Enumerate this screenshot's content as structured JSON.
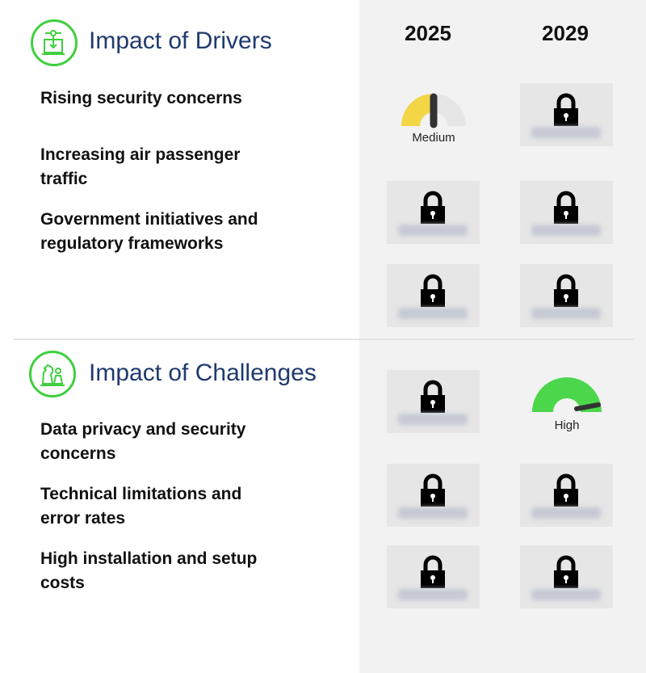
{
  "years": [
    "2025",
    "2029"
  ],
  "drivers": {
    "title": "Impact of Drivers",
    "icon": "drivers-icon",
    "items": [
      {
        "label": "Rising security concerns",
        "y2025": "Medium",
        "y2029": "locked"
      },
      {
        "label": "Increasing air passenger traffic",
        "y2025": "locked",
        "y2029": "locked"
      },
      {
        "label": "Government initiatives and regulatory frameworks",
        "y2025": "locked",
        "y2029": "locked"
      }
    ]
  },
  "challenges": {
    "title": "Impact of Challenges",
    "icon": "chess-icon",
    "items": [
      {
        "label": "Data privacy and security concerns",
        "y2025": "locked",
        "y2029": "High"
      },
      {
        "label": "Technical limitations and error rates",
        "y2025": "locked",
        "y2029": "locked"
      },
      {
        "label": "High installation and setup costs",
        "y2025": "locked",
        "y2029": "locked"
      }
    ]
  },
  "colors": {
    "medium": "#f2d646",
    "high": "#4cd64c",
    "accent": "#3fcf3f",
    "title": "#1f3a6e"
  }
}
